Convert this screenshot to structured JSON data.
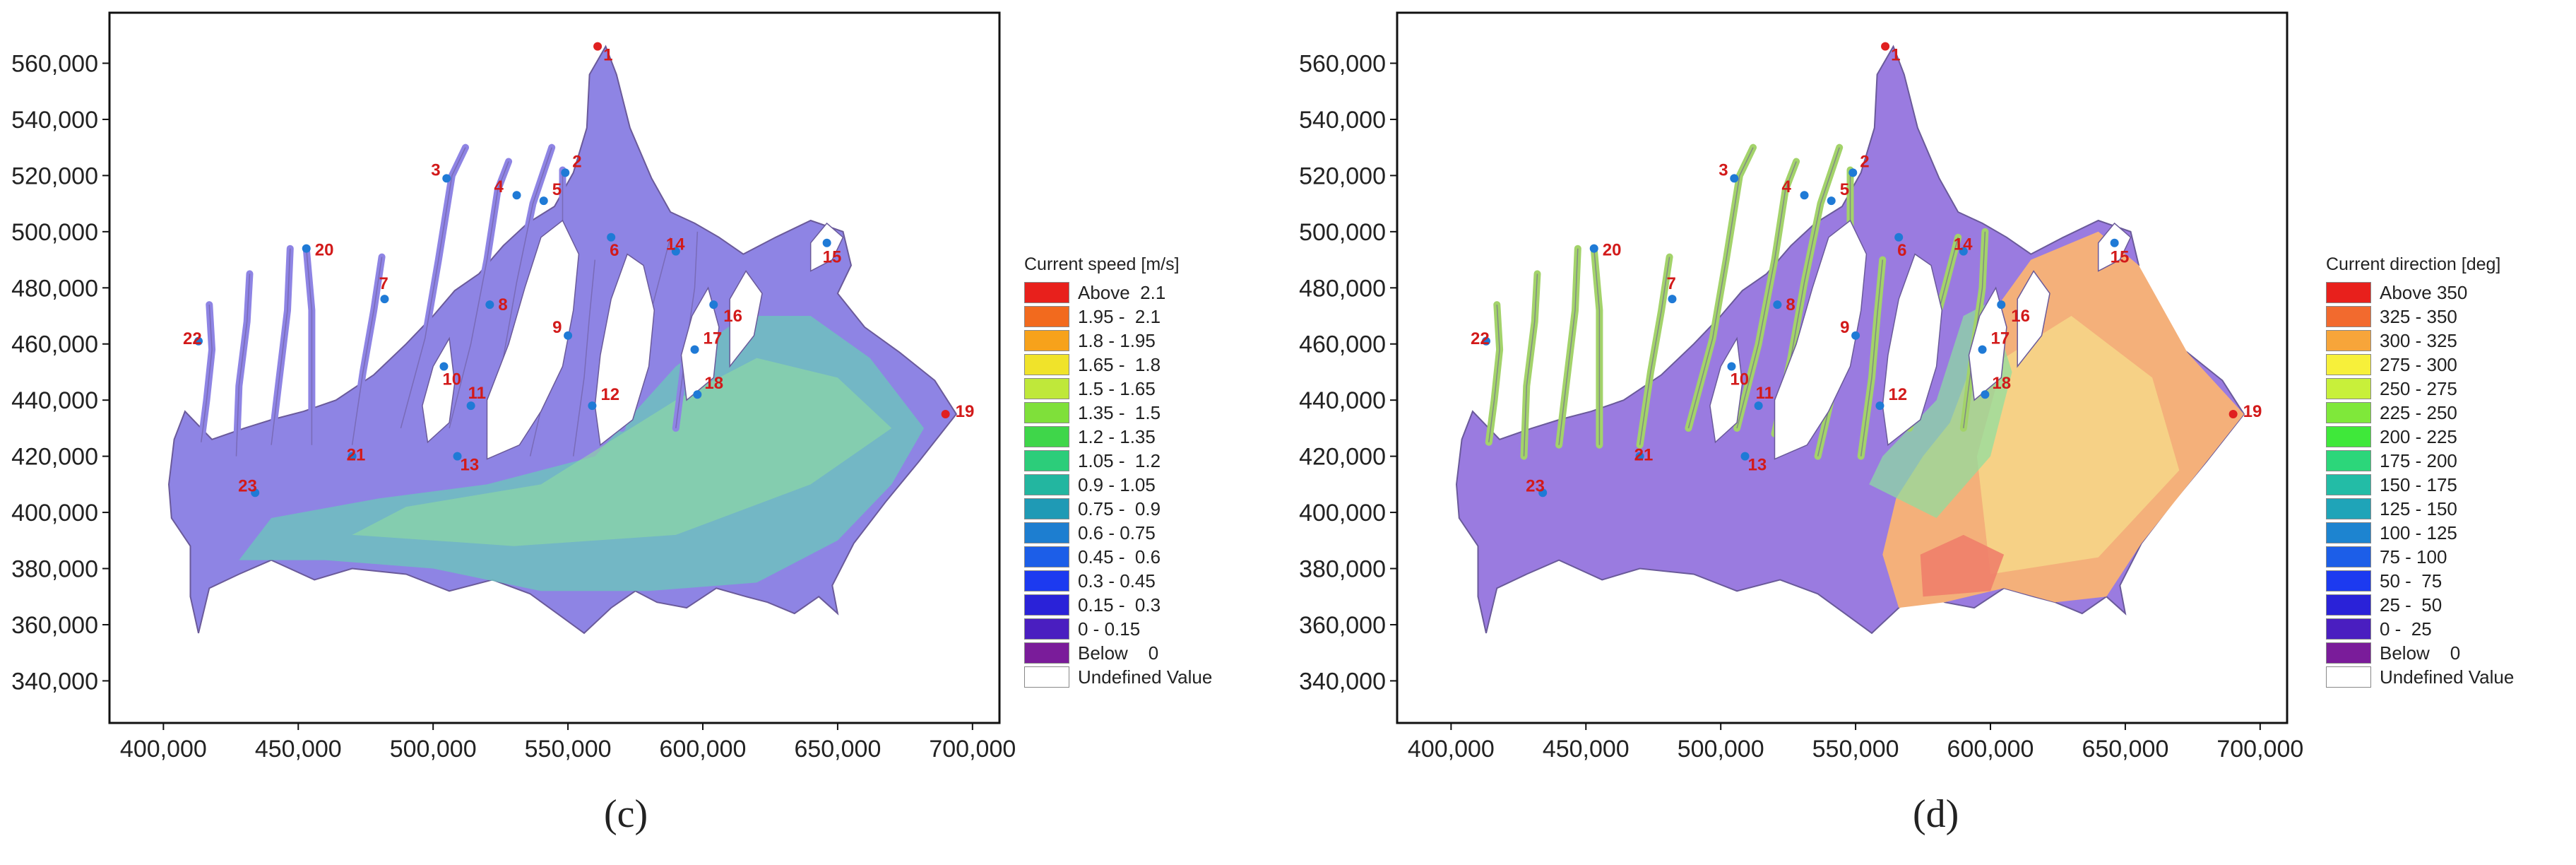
{
  "x_ticks": [
    "400,000",
    "450,000",
    "500,000",
    "550,000",
    "600,000",
    "650,000",
    "700,000"
  ],
  "y_ticks": [
    "560,000",
    "540,000",
    "520,000",
    "500,000",
    "480,000",
    "460,000",
    "440,000",
    "420,000",
    "400,000",
    "380,000",
    "360,000",
    "340,000"
  ],
  "stations": [
    {
      "id": "1"
    },
    {
      "id": "2"
    },
    {
      "id": "3"
    },
    {
      "id": "4"
    },
    {
      "id": "5"
    },
    {
      "id": "6"
    },
    {
      "id": "7"
    },
    {
      "id": "8"
    },
    {
      "id": "9"
    },
    {
      "id": "10"
    },
    {
      "id": "11"
    },
    {
      "id": "12"
    },
    {
      "id": "13"
    },
    {
      "id": "14"
    },
    {
      "id": "15"
    },
    {
      "id": "16"
    },
    {
      "id": "17"
    },
    {
      "id": "18"
    },
    {
      "id": "19"
    },
    {
      "id": "20"
    },
    {
      "id": "21"
    },
    {
      "id": "22"
    },
    {
      "id": "23"
    }
  ],
  "panels": [
    {
      "caption": "(c)",
      "legend_title": "Current speed [m/s]",
      "legend": [
        {
          "label": "Above  2.1",
          "color": "#e8201c"
        },
        {
          "label": "1.95 -  2.1",
          "color": "#f26a1e"
        },
        {
          "label": "1.8 - 1.95",
          "color": "#f7a21b"
        },
        {
          "label": "1.65 -  1.8",
          "color": "#f0e32a"
        },
        {
          "label": "1.5 - 1.65",
          "color": "#bfe83a"
        },
        {
          "label": "1.35 -  1.5",
          "color": "#7fe03a"
        },
        {
          "label": "1.2 - 1.35",
          "color": "#3fd64a"
        },
        {
          "label": "1.05 -  1.2",
          "color": "#2ccd7a"
        },
        {
          "label": "0.9 - 1.05",
          "color": "#23b6a0"
        },
        {
          "label": "0.75 -  0.9",
          "color": "#1f9ab5"
        },
        {
          "label": "0.6 - 0.75",
          "color": "#1d7ed0"
        },
        {
          "label": "0.45 -  0.6",
          "color": "#1c5ee8"
        },
        {
          "label": "0.3 - 0.45",
          "color": "#1c3af0"
        },
        {
          "label": "0.15 -  0.3",
          "color": "#2a22d8"
        },
        {
          "label": "0 - 0.15",
          "color": "#4a1ec0"
        },
        {
          "label": "Below    0",
          "color": "#7a1c9a"
        },
        {
          "label": "Undefined Value",
          "color": "#ffffff"
        }
      ]
    },
    {
      "caption": "(d)",
      "legend_title": "Current direction [deg]",
      "legend": [
        {
          "label": "Above 350",
          "color": "#e8201c"
        },
        {
          "label": "325 - 350",
          "color": "#f26a2e"
        },
        {
          "label": "300 - 325",
          "color": "#f7a53a"
        },
        {
          "label": "275 - 300",
          "color": "#f7f03a"
        },
        {
          "label": "250 - 275",
          "color": "#c8f03a"
        },
        {
          "label": "225 - 250",
          "color": "#7fe83a"
        },
        {
          "label": "200 - 225",
          "color": "#3fe83a"
        },
        {
          "label": "175 - 200",
          "color": "#2cd67a"
        },
        {
          "label": "150 - 175",
          "color": "#23bca6"
        },
        {
          "label": "125 - 150",
          "color": "#1fa4b8"
        },
        {
          "label": "100 - 125",
          "color": "#1d84d0"
        },
        {
          "label": "75 - 100",
          "color": "#1c5ee8"
        },
        {
          "label": "50 -  75",
          "color": "#1c3af0"
        },
        {
          "label": "25 -  50",
          "color": "#2a22d8"
        },
        {
          "label": "0 -  25",
          "color": "#4a1ec0"
        },
        {
          "label": "Below    0",
          "color": "#7a1c9a"
        },
        {
          "label": "Undefined Value",
          "color": "#ffffff"
        }
      ]
    }
  ]
}
